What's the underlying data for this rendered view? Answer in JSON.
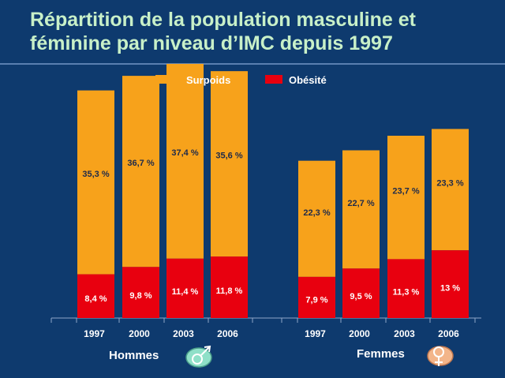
{
  "title": "Répartition de la population masculine et féminine par niveau d’IMC depuis 1997",
  "colors": {
    "background": "#0e3a6e",
    "title": "#c8f0c8",
    "surpoids": "#f7a21b",
    "obesite": "#e8000f",
    "axis": "#8fa6c8"
  },
  "chart_data": {
    "type": "bar",
    "stacked": true,
    "groups": [
      {
        "label": "Hommes",
        "icon": "male-symbol-icon",
        "categories": [
          "1997",
          "2000",
          "2003",
          "2006"
        ],
        "obesite": [
          8.4,
          9.8,
          11.4,
          11.8
        ],
        "surpoids": [
          35.3,
          36.7,
          37.4,
          35.6
        ],
        "obesite_labels": [
          "8,4 %",
          "9,8 %",
          "11,4 %",
          "11,8 %"
        ],
        "surpoids_labels": [
          "35,3 %",
          "36,7 %",
          "37,4 %",
          "35,6 %"
        ]
      },
      {
        "label": "Femmes",
        "icon": "female-symbol-icon",
        "categories": [
          "1997",
          "2000",
          "2003",
          "2006"
        ],
        "obesite": [
          7.9,
          9.5,
          11.3,
          13
        ],
        "surpoids": [
          22.3,
          22.7,
          23.7,
          23.3
        ],
        "obesite_labels": [
          "7,9 %",
          "9,5 %",
          "11,3 %",
          "13 %"
        ],
        "surpoids_labels": [
          "22,3 %",
          "22,7 %",
          "23,7 %",
          "23,3 %"
        ]
      }
    ],
    "legend": [
      {
        "name": "Surpoids",
        "color": "#f7a21b"
      },
      {
        "name": "Obésité",
        "color": "#e8000f"
      }
    ],
    "legend_position": "top",
    "grid": false,
    "ylim": [
      0,
      51
    ]
  }
}
